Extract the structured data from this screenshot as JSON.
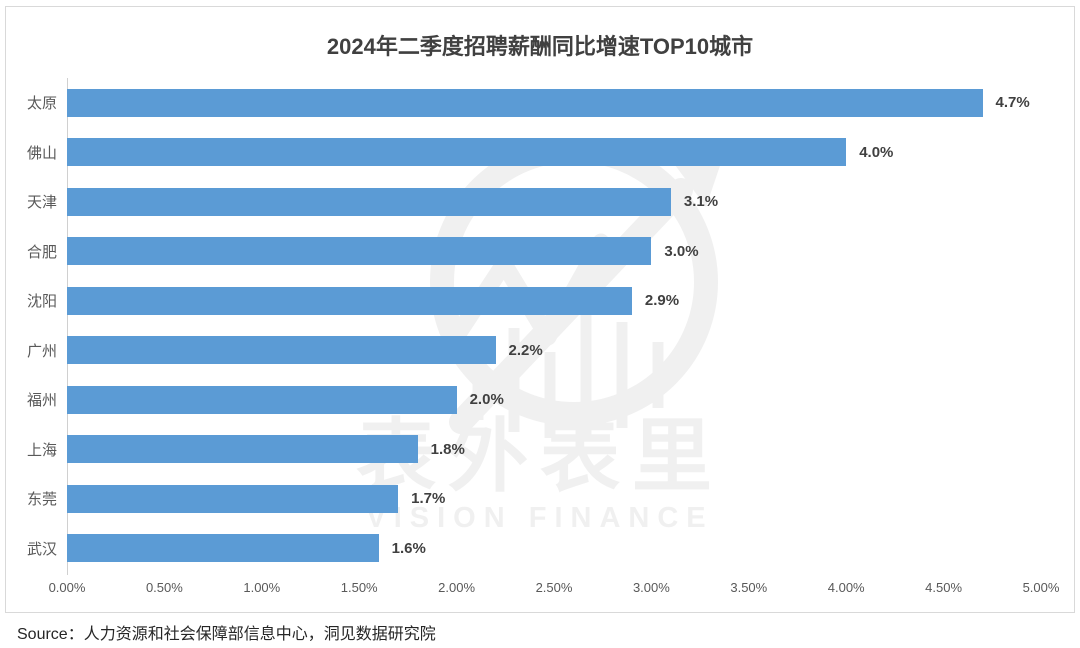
{
  "title": "2024年二季度招聘薪酬同比增速TOP10城市",
  "source": {
    "text": "Source：人力资源和社会保障部信息中心，洞见数据研究院"
  },
  "watermark": {
    "cn": "表外表里",
    "en": "VISION FINANCE",
    "logo_icon": "circle-trend-arrow-logo"
  },
  "colors": {
    "bar": "#5B9BD5",
    "title_text": "#404040",
    "category_text": "#595959",
    "value_text": "#404040",
    "axis_text": "#595959",
    "axis_line": "#d0d0d0",
    "card_border": "#d9d9d9",
    "watermark": "#f0f0f0"
  },
  "chart_data": {
    "type": "bar",
    "orientation": "horizontal",
    "title": "2024年二季度招聘薪酬同比增速TOP10城市",
    "categories": [
      "太原",
      "佛山",
      "天津",
      "合肥",
      "沈阳",
      "广州",
      "福州",
      "上海",
      "东莞",
      "武汉"
    ],
    "values": [
      4.7,
      4.0,
      3.1,
      3.0,
      2.9,
      2.2,
      2.0,
      1.8,
      1.7,
      1.6
    ],
    "value_labels": [
      "4.7%",
      "4.0%",
      "3.1%",
      "3.0%",
      "2.9%",
      "2.2%",
      "2.0%",
      "1.8%",
      "1.7%",
      "1.6%"
    ],
    "xlabel": "",
    "ylabel": "",
    "xlim": [
      0,
      5
    ],
    "x_ticks": [
      "0.00%",
      "0.50%",
      "1.00%",
      "1.50%",
      "2.00%",
      "2.50%",
      "3.00%",
      "3.50%",
      "4.00%",
      "4.50%",
      "5.00%"
    ],
    "grid": false,
    "legend": false
  }
}
